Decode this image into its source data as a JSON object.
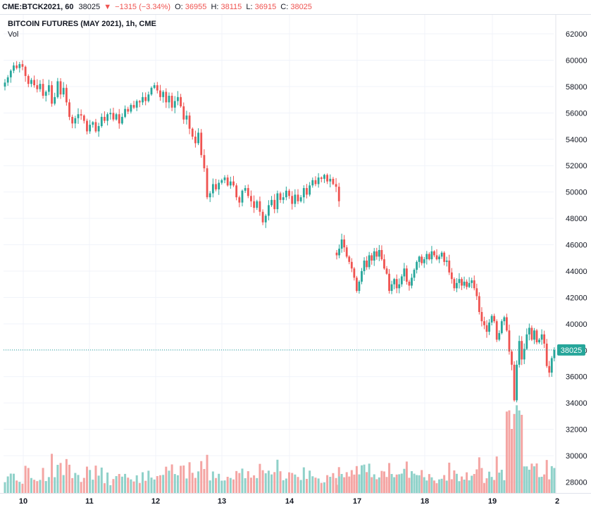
{
  "header": {
    "symbol": "CME:BTCK2021, 60",
    "last": "38025",
    "change": "−1315 (−3.34%)",
    "o_label": "O:",
    "o_value": "36955",
    "h_label": "H:",
    "h_value": "38115",
    "l_label": "L:",
    "l_value": "36915",
    "c_label": "C:",
    "c_value": "38025"
  },
  "legend": {
    "title": "BITCOIN FUTURES (MAY 2021), 1h, CME",
    "volume_label": "Vol"
  },
  "colors": {
    "up": "#26a69a",
    "down": "#ef5350",
    "up_volume": "#8fd1c9",
    "down_volume": "#f4a5a3",
    "grid": "#f0f3fa",
    "price_line": "#26a69a"
  },
  "chart_data": {
    "type": "candlestick",
    "title": "BITCOIN FUTURES (MAY 2021), 1h, CME",
    "y_axis": {
      "min": 27000,
      "max": 63000,
      "ticks": [
        28000,
        30000,
        32000,
        34000,
        36000,
        38000,
        40000,
        42000,
        44000,
        46000,
        48000,
        50000,
        52000,
        54000,
        56000,
        58000,
        60000,
        62000
      ],
      "position": "right"
    },
    "x_axis": {
      "ticks": [
        "10",
        "11",
        "12",
        "13",
        "14",
        "17",
        "18",
        "19",
        "2"
      ]
    },
    "last_price": 38025,
    "grid": true,
    "volume_overlay": true,
    "series": [
      {
        "segment": 1,
        "close": [
          58300,
          58700,
          59200,
          59600,
          59400,
          59700,
          59500,
          58800,
          58200,
          58500,
          58100,
          57800,
          58200,
          57300,
          57600,
          58100,
          56700,
          57200,
          58400,
          57400,
          57900,
          56800,
          55700,
          55200,
          55600,
          55900,
          55800,
          55400,
          54600,
          55100,
          55300,
          54600,
          55000,
          55700,
          55400,
          55900,
          56000,
          55500,
          55900,
          55200,
          55700,
          56300,
          56100,
          56600,
          56400,
          56900,
          56800,
          57200,
          56900,
          57400,
          57900,
          58100,
          57700,
          57200,
          57600,
          56800,
          57300,
          56400,
          56900,
          57200,
          56500,
          55500,
          55800,
          54800,
          54200,
          53700,
          54500,
          52800,
          51800,
          49600,
          49900,
          50600,
          50200,
          50700,
          50900,
          51100,
          50500,
          50800,
          50500,
          49600,
          49200,
          50100,
          50300,
          49700,
          49300,
          48800,
          49300,
          48500,
          47700,
          48200,
          49000,
          49400,
          48700,
          49900,
          49400,
          49600,
          50100,
          49700,
          49100,
          49800,
          49300,
          49600,
          50300,
          49800,
          50500,
          50900,
          50600,
          51100,
          51000,
          51300,
          50800,
          51000,
          50600,
          50400,
          49300
        ]
      },
      {
        "segment": 2,
        "close": [
          45200,
          45700,
          46400,
          45800,
          45100,
          44700,
          44200,
          43500,
          42500,
          43200,
          44000,
          44800,
          44300,
          45200,
          44800,
          45500,
          45100,
          45600,
          44900,
          44200,
          43800,
          42500,
          43000,
          43400,
          42700,
          43000,
          43600,
          44200,
          43200,
          42900,
          43500,
          44100,
          44700,
          45100,
          44600,
          44900,
          45300,
          44900,
          45500,
          45200,
          44900,
          45100,
          45400,
          44700,
          44800,
          43900,
          43400,
          42700,
          43100,
          43400,
          42900,
          43200,
          42800,
          43100,
          43300,
          42700,
          42100,
          40900,
          40200,
          39900,
          39400,
          40100,
          40600,
          40200,
          38800,
          39300,
          40200,
          40500,
          39500,
          37900,
          36900,
          34200,
          36900,
          38700,
          37300,
          38100,
          39200,
          39700,
          38800,
          39500,
          38600,
          38800,
          39200,
          38500,
          36800,
          36300,
          37400,
          38025
        ]
      }
    ]
  }
}
